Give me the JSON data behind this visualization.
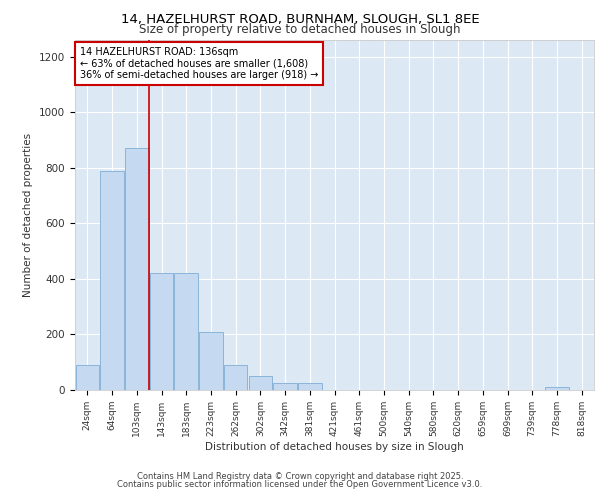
{
  "title_line1": "14, HAZELHURST ROAD, BURNHAM, SLOUGH, SL1 8EE",
  "title_line2": "Size of property relative to detached houses in Slough",
  "xlabel": "Distribution of detached houses by size in Slough",
  "ylabel": "Number of detached properties",
  "categories": [
    "24sqm",
    "64sqm",
    "103sqm",
    "143sqm",
    "183sqm",
    "223sqm",
    "262sqm",
    "302sqm",
    "342sqm",
    "381sqm",
    "421sqm",
    "461sqm",
    "500sqm",
    "540sqm",
    "580sqm",
    "620sqm",
    "659sqm",
    "699sqm",
    "739sqm",
    "778sqm",
    "818sqm"
  ],
  "values": [
    90,
    790,
    870,
    420,
    420,
    210,
    90,
    50,
    25,
    25,
    0,
    0,
    0,
    0,
    0,
    0,
    0,
    0,
    0,
    10,
    0
  ],
  "bar_color": "#c5d9f1",
  "bar_edge_color": "#8ab4d9",
  "background_color": "#dce9f5",
  "grid_color": "#ffffff",
  "annotation_text": "14 HAZELHURST ROAD: 136sqm\n← 63% of detached houses are smaller (1,608)\n36% of semi-detached houses are larger (918) →",
  "annotation_box_color": "#ffffff",
  "annotation_box_edge_color": "#cc0000",
  "vline_x": 3,
  "vline_color": "#cc0000",
  "ylim": [
    0,
    1260
  ],
  "yticks": [
    0,
    200,
    400,
    600,
    800,
    1000,
    1200
  ],
  "footer_line1": "Contains HM Land Registry data © Crown copyright and database right 2025.",
  "footer_line2": "Contains public sector information licensed under the Open Government Licence v3.0."
}
